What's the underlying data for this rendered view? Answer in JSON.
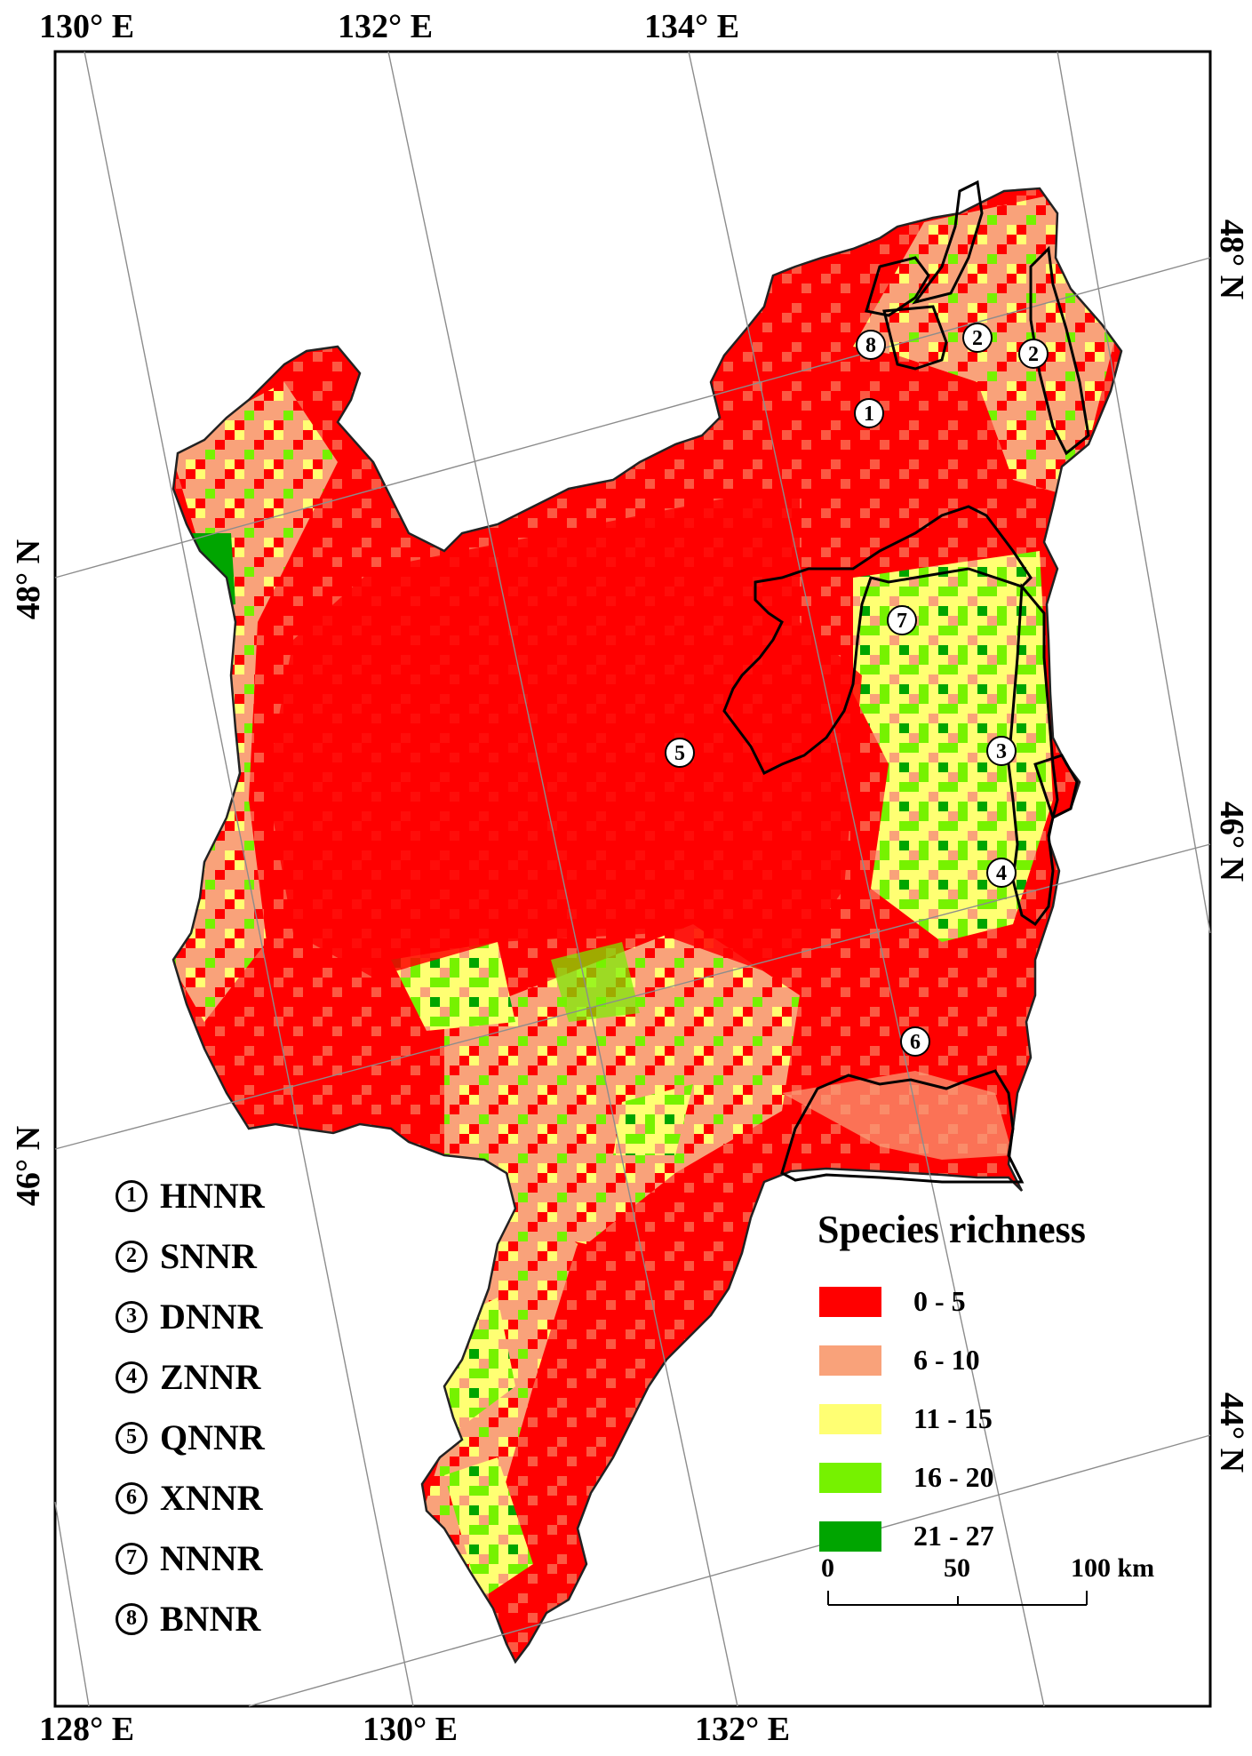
{
  "top_labels": [
    "130° E",
    "132° E",
    "134° E"
  ],
  "bottom_labels": [
    "128° E",
    "130° E",
    "132° E"
  ],
  "left_labels": [
    "48° N",
    "46° N"
  ],
  "right_labels": [
    "48° N",
    "46° N",
    "44° N"
  ],
  "reserves": [
    {
      "num": "1",
      "name": "HNNR"
    },
    {
      "num": "2",
      "name": "SNNR"
    },
    {
      "num": "3",
      "name": "DNNR"
    },
    {
      "num": "4",
      "name": "ZNNR"
    },
    {
      "num": "5",
      "name": "QNNR"
    },
    {
      "num": "6",
      "name": "XNNR"
    },
    {
      "num": "7",
      "name": "NNNR"
    },
    {
      "num": "8",
      "name": "BNNR"
    }
  ],
  "map_markers": [
    "8",
    "2",
    "2",
    "1",
    "7",
    "5",
    "3",
    "4",
    "6"
  ],
  "legend": {
    "title": "Species richness",
    "classes": [
      {
        "label": "0 - 5",
        "color": "#ff0000"
      },
      {
        "label": "6 - 10",
        "color": "#f9a27a"
      },
      {
        "label": "11 - 15",
        "color": "#ffff73"
      },
      {
        "label": "16 - 20",
        "color": "#76f200"
      },
      {
        "label": "21 - 27",
        "color": "#00a500"
      }
    ]
  },
  "scale_bar": {
    "labels": [
      "0",
      "50",
      "100 km"
    ]
  },
  "colors": {
    "boundary": "#000000",
    "graticule": "#8c8c8c",
    "background": "#ffffff"
  }
}
